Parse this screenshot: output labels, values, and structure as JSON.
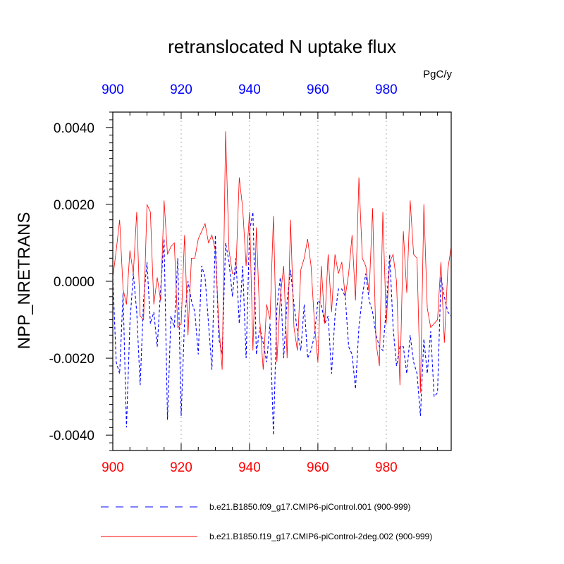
{
  "chart_data": {
    "type": "line",
    "title": "retranslocated N uptake flux",
    "units": "PgC/y",
    "ylabel": "NPP_NRETRANS",
    "xlabel": "",
    "xlim": [
      900,
      999
    ],
    "ylim": [
      -0.0044,
      0.0044
    ],
    "x_ticks": [
      900,
      920,
      940,
      960,
      980
    ],
    "x_tick_labels": [
      "900",
      "920",
      "940",
      "960",
      "980"
    ],
    "y_ticks": [
      -0.004,
      -0.002,
      0.0,
      0.002,
      0.004
    ],
    "y_tick_labels": [
      "-0.0040",
      "-0.0020",
      "0.0000",
      "0.0020",
      "0.0040"
    ],
    "top_axis_color": "#0000ff",
    "bottom_axis_color": "#ff0000",
    "grid": "vertical dotted at major x ticks",
    "legend_position": "bottom",
    "series": [
      {
        "name": "b.e21.B1850.f09_g17.CMIP6-piControl.001 (900-999)",
        "color": "#0000ff",
        "style": "dashed",
        "x_start": 900,
        "values": [
          0.0001,
          -0.0021,
          -0.0024,
          -0.0003,
          -0.0038,
          -0.0011,
          0.0002,
          -0.0008,
          -0.0027,
          -0.0005,
          0.0005,
          -0.0011,
          -0.0008,
          -0.0017,
          -0.0002,
          0.0011,
          -0.0036,
          -0.0009,
          -0.0012,
          0.0006,
          -0.0035,
          -0.001,
          0.0,
          -0.0005,
          -0.0008,
          -0.0019,
          0.0004,
          0.0001,
          -0.0011,
          -0.0023,
          0.0012,
          -0.0015,
          -0.0019,
          0.001,
          0.0005,
          -0.0004,
          0.0006,
          -0.0011,
          0.0004,
          -0.002,
          0.0013,
          0.0018,
          -0.0019,
          -0.0012,
          -0.0016,
          -0.0021,
          -0.0011,
          -0.004,
          -0.0007,
          0.0001,
          -0.002,
          -0.0005,
          0.0003,
          -0.0006,
          -0.0013,
          -0.0018,
          -0.0006,
          -0.002,
          -0.0018,
          -0.0014,
          -0.0005,
          -0.0006,
          -0.0011,
          -0.0009,
          -0.0024,
          -0.0009,
          -0.0002,
          -0.0002,
          -0.0004,
          -0.0017,
          -0.0019,
          -0.0028,
          -0.0012,
          -0.0004,
          0.0002,
          -0.0005,
          -0.0008,
          -0.0014,
          -0.0017,
          -0.0018,
          -0.0007,
          0.0007,
          -0.0012,
          -0.0022,
          -0.0017,
          -0.0017,
          -0.0024,
          -0.0014,
          -0.0021,
          -0.0024,
          -0.0035,
          -0.0015,
          -0.0024,
          -0.0013,
          -0.003,
          -0.0029,
          0.0001,
          -0.0004,
          -0.0008,
          -0.0009
        ]
      },
      {
        "name": "b.e21.B1850.f19_g17.CMIP6-piControl-2deg.002 (900-999)",
        "color": "#ff0000",
        "style": "solid",
        "x_start": 900,
        "values": [
          0.0001,
          0.0008,
          0.0016,
          -0.0002,
          -0.0006,
          0.0008,
          0.0002,
          0.0018,
          -0.0009,
          -0.001,
          0.002,
          0.0018,
          -0.0006,
          0.0001,
          -0.0005,
          0.0021,
          0.0007,
          0.0009,
          0.001,
          -0.0012,
          -0.0011,
          0.0012,
          -0.0014,
          0.0006,
          0.0006,
          0.0011,
          0.0013,
          0.0015,
          0.001,
          0.0012,
          0.0008,
          -0.0011,
          -0.0023,
          0.0039,
          0.0008,
          0.0002,
          0.0002,
          0.0027,
          0.0019,
          0.0004,
          0.0018,
          -0.0018,
          0.0014,
          -0.001,
          -0.0023,
          -0.0006,
          -0.001,
          0.0017,
          -0.0021,
          -0.0004,
          0.0004,
          -0.002,
          0.0016,
          -0.0012,
          -0.0018,
          0.0003,
          0.0006,
          0.0011,
          0.0004,
          -0.0011,
          -0.0021,
          0.0004,
          -0.0011,
          0.0007,
          -0.0008,
          0.0007,
          0.0002,
          0.0005,
          -0.0004,
          0.0002,
          0.0012,
          -0.0005,
          0.0027,
          0.0006,
          0.0004,
          -0.0003,
          0.0019,
          -0.0016,
          -0.0022,
          0.0018,
          -0.0011,
          0.0005,
          0.0007,
          0.0,
          -0.0027,
          0.0013,
          -0.0003,
          0.0021,
          0.0007,
          0.0006,
          -0.0029,
          0.002,
          -0.0007,
          -0.0012,
          -0.0011,
          -0.001,
          0.0005,
          -0.0016,
          0.0003,
          0.0009
        ]
      }
    ]
  }
}
